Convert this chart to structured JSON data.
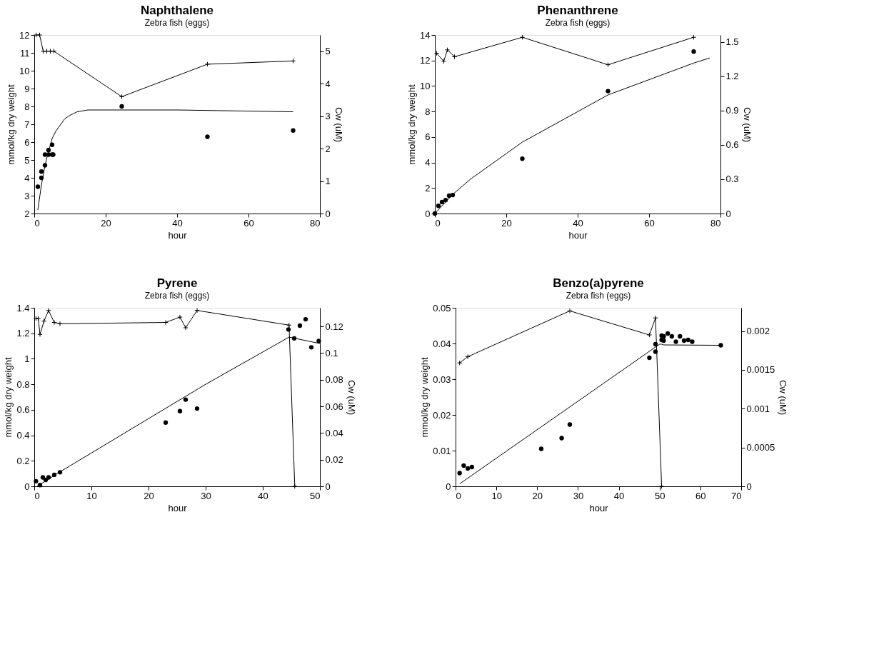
{
  "chart_data": [
    {
      "type": "line",
      "title": "Naphthalene",
      "subtitle": "Zebra fish (eggs)",
      "xlabel": "hour",
      "ylabel": "mmol/kg dry weight",
      "y2label": "Cw (uM)",
      "xlim": [
        0,
        80
      ],
      "xticks": [
        0,
        20,
        40,
        60,
        80
      ],
      "ylim": [
        2,
        12
      ],
      "yticks": [
        2,
        3,
        4,
        5,
        6,
        7,
        8,
        9,
        10,
        11,
        12
      ],
      "y2lim": [
        0,
        5.5
      ],
      "y2ticks": [
        0,
        1,
        2,
        3,
        4,
        5
      ],
      "series": [
        {
          "type": "scatter",
          "marker": "circle",
          "color": "#000000",
          "x": [
            1,
            2,
            2,
            3,
            3,
            4,
            4,
            5,
            5,
            5.3,
            24.5,
            48.5,
            72.5
          ],
          "values": [
            3.5,
            4.0,
            4.35,
            4.7,
            5.3,
            5.3,
            5.55,
            5.3,
            5.85,
            5.3,
            8.0,
            6.3,
            6.65
          ]
        },
        {
          "marker": "none",
          "color": "#000000",
          "x": [
            1,
            2,
            3,
            4,
            5,
            6,
            8.5,
            10,
            12,
            15,
            20,
            40,
            72.5
          ],
          "values": [
            2.2,
            3.6,
            4.7,
            5.5,
            6.2,
            6.6,
            7.3,
            7.5,
            7.7,
            7.8,
            7.8,
            7.8,
            7.7
          ]
        },
        {
          "marker": "cross",
          "axis": "y2",
          "color": "#000000",
          "x": [
            0.5,
            1.5,
            2.5,
            3.5,
            4.5,
            5.5,
            24.5,
            48.5,
            72.5
          ],
          "values": [
            5.5,
            5.5,
            5.0,
            5.0,
            5.0,
            5.0,
            3.6,
            4.6,
            4.7
          ]
        }
      ]
    },
    {
      "type": "line",
      "title": "Phenanthrene",
      "subtitle": "Zebra fish (eggs)",
      "xlabel": "hour",
      "ylabel": "mmol/kg dry weight",
      "y2label": "Cw (uM)",
      "xlim": [
        0,
        80
      ],
      "xticks": [
        0,
        20,
        40,
        60,
        80
      ],
      "ylim": [
        0,
        14
      ],
      "yticks": [
        0,
        2,
        4,
        6,
        8,
        10,
        12,
        14
      ],
      "y2lim": [
        0,
        1.56
      ],
      "y2ticks": [
        0,
        0.3,
        0.6,
        0.9,
        1.2,
        1.5
      ],
      "series": [
        {
          "type": "scatter",
          "marker": "circle",
          "color": "#000000",
          "x": [
            0,
            1,
            2,
            3,
            4,
            5,
            24.5,
            48.5,
            72.5
          ],
          "values": [
            0,
            0.6,
            0.9,
            1.05,
            1.4,
            1.45,
            4.3,
            9.6,
            12.7
          ]
        },
        {
          "marker": "none",
          "color": "#000000",
          "x": [
            0,
            5,
            10,
            19,
            24.5,
            48.5,
            72.5,
            77
          ],
          "values": [
            0,
            1.5,
            2.7,
            4.5,
            5.6,
            9.3,
            11.8,
            12.2
          ]
        },
        {
          "marker": "cross",
          "axis": "y2",
          "color": "#000000",
          "x": [
            0.5,
            2.5,
            3.5,
            5.5,
            24.5,
            48.5,
            72.5
          ],
          "values": [
            1.4,
            1.33,
            1.43,
            1.37,
            1.54,
            1.3,
            1.54
          ]
        }
      ]
    },
    {
      "type": "line",
      "title": "Pyrene",
      "subtitle": "Zebra fish (eggs)",
      "xlabel": "hour",
      "ylabel": "mmol/kg dry weight",
      "y2label": "Cw (uM)",
      "xlim": [
        0,
        50
      ],
      "xticks": [
        0,
        10,
        20,
        30,
        40,
        50
      ],
      "ylim": [
        0,
        1.4
      ],
      "yticks": [
        0,
        0.2,
        0.4,
        0.6,
        0.8,
        1,
        1.2,
        1.4
      ],
      "y2lim": [
        0,
        0.134
      ],
      "y2ticks": [
        0,
        0.02,
        0.04,
        0.06,
        0.08,
        0.1,
        0.12
      ],
      "series": [
        {
          "type": "scatter",
          "marker": "circle",
          "color": "#000000",
          "x": [
            0.3,
            1,
            1.5,
            2,
            2.5,
            3.5,
            4.5,
            23,
            25.5,
            26.5,
            28.5,
            44.5,
            45.5,
            46.5,
            47.5,
            48.5,
            49.8
          ],
          "values": [
            0.04,
            0.01,
            0.07,
            0.05,
            0.07,
            0.09,
            0.11,
            0.5,
            0.59,
            0.68,
            0.61,
            1.23,
            1.16,
            1.26,
            1.31,
            1.09,
            1.14
          ]
        },
        {
          "marker": "none",
          "color": "#000000",
          "x": [
            0.5,
            4,
            30,
            44.6,
            50
          ],
          "values": [
            0,
            0.1,
            0.8,
            1.17,
            1.12
          ]
        },
        {
          "marker": "cross",
          "axis": "y2",
          "color": "#000000",
          "x": [
            0.3,
            0.7,
            1,
            1.7,
            2.5,
            3.5,
            4.5,
            23,
            25.5,
            26.5,
            28.5,
            44.6,
            45.6
          ],
          "values": [
            0.126,
            0.126,
            0.114,
            0.124,
            0.132,
            0.123,
            0.122,
            0.123,
            0.127,
            0.119,
            0.132,
            0.121,
            0
          ]
        }
      ]
    },
    {
      "type": "line",
      "title": "Benzo(a)pyrene",
      "subtitle": "Zebra fish (eggs)",
      "xlabel": "hour",
      "ylabel": "mmol/kg dry weight",
      "y2label": "Cw (uM)",
      "xlim": [
        0,
        70
      ],
      "xticks": [
        0,
        10,
        20,
        30,
        40,
        50,
        60,
        70
      ],
      "ylim": [
        0,
        0.05
      ],
      "yticks": [
        0,
        0.01,
        0.02,
        0.03,
        0.04,
        0.05
      ],
      "y2lim": [
        0,
        0.0023
      ],
      "y2ticks": [
        0,
        0.0005,
        0.001,
        0.0015,
        0.002
      ],
      "series": [
        {
          "type": "scatter",
          "marker": "circle",
          "color": "#000000",
          "x": [
            1,
            2,
            3,
            4,
            21,
            26,
            28,
            47.5,
            49,
            49,
            50.5,
            50.5,
            51,
            51,
            52,
            53,
            54,
            55,
            56,
            57,
            58,
            65
          ],
          "values": [
            0.0037,
            0.0058,
            0.005,
            0.0054,
            0.0105,
            0.0135,
            0.0173,
            0.036,
            0.0377,
            0.0398,
            0.0422,
            0.041,
            0.0408,
            0.042,
            0.0428,
            0.042,
            0.0405,
            0.042,
            0.0408,
            0.041,
            0.0405,
            0.0395
          ]
        },
        {
          "marker": "none",
          "color": "#000000",
          "x": [
            1,
            50,
            50.5,
            51,
            65
          ],
          "values": [
            0.0007,
            0.0398,
            0.0398,
            0.0396,
            0.0395
          ]
        },
        {
          "marker": "cross",
          "axis": "y2",
          "color": "#000000",
          "x": [
            1,
            3,
            28,
            47.5,
            49,
            50.5
          ],
          "values": [
            0.00159,
            0.00167,
            0.00226,
            0.00195,
            0.00217,
            0
          ]
        }
      ]
    }
  ]
}
